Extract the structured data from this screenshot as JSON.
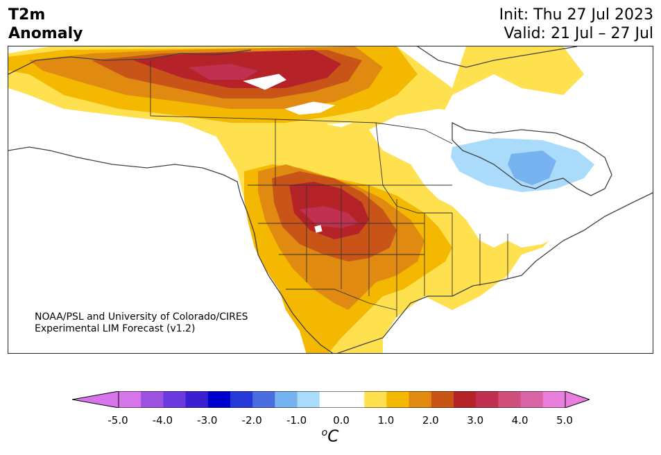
{
  "title": {
    "left_line1": "T2m",
    "left_line2": "Anomaly",
    "init": "Init: Thu 27 Jul 2023",
    "valid": "Valid: 21 Jul – 27 Jul"
  },
  "credit": {
    "line1": "NOAA/PSL and University of Colorado/CIRES",
    "line2": "Experimental LIM Forecast (v1.2)"
  },
  "colorbar": {
    "unit_superscript": "o",
    "unit_base": "C",
    "ticks": [
      "-5.0",
      "-4.0",
      "-3.0",
      "-2.0",
      "-1.0",
      "0.0",
      "1.0",
      "2.0",
      "3.0",
      "4.0",
      "5.0"
    ],
    "colors": [
      "#d675ea",
      "#9b52e0",
      "#6a3ade",
      "#3a1fd1",
      "#0000cc",
      "#2638d8",
      "#4a6de0",
      "#76b3f0",
      "#abdbfb",
      "#ffffff",
      "#ffffff",
      "#ffe04f",
      "#f5b800",
      "#e08a12",
      "#c85418",
      "#b52228",
      "#c03050",
      "#cf4f7d",
      "#d964a8",
      "#ea7edc"
    ],
    "under_color": "#d675ea",
    "over_color": "#ea7edc"
  },
  "map": {
    "land_color": "#ffffff",
    "coast_color": "#404040",
    "border_color": "#333333"
  }
}
